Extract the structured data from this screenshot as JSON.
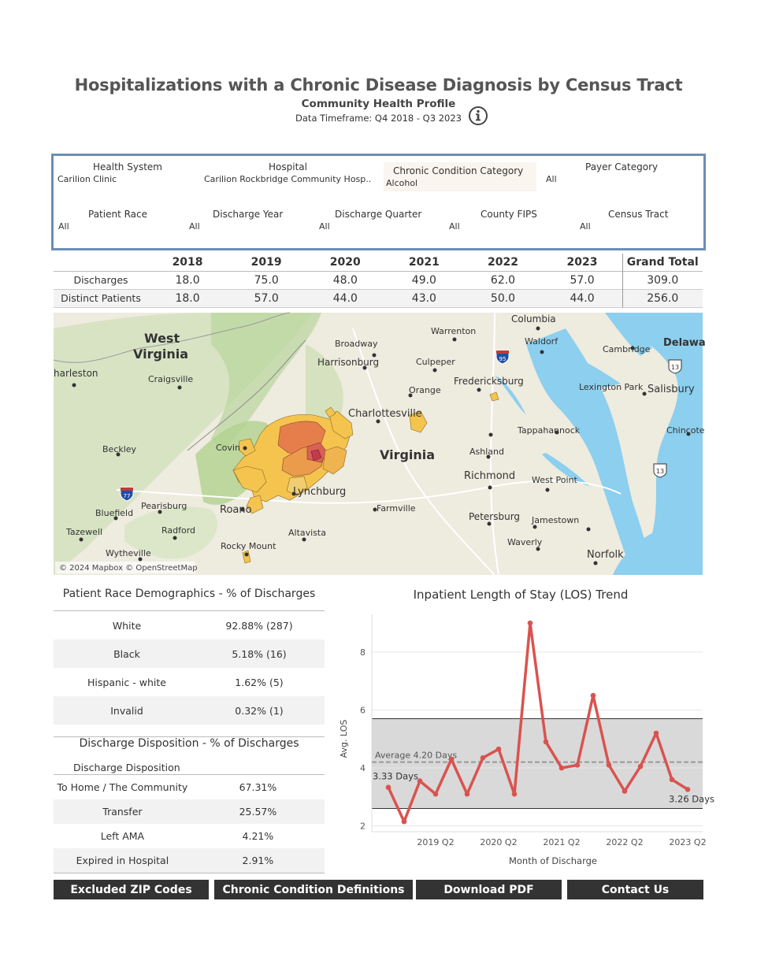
{
  "header": {
    "title": "Hospitalizations with a Chronic Disease Diagnosis by Census Tract",
    "subtitle": "Community Health Profile",
    "timeframe": "Data Timeframe: Q4 2018 - Q3 2023",
    "info_icon": "info-circle-icon"
  },
  "filters": {
    "health_system": {
      "label": "Health System",
      "value": "Carilion Clinic"
    },
    "hospital": {
      "label": "Hospital",
      "value": "Carilion Rockbridge Community Hosp.."
    },
    "chronic_condition": {
      "label": "Chronic Condition Category",
      "value": "Alcohol"
    },
    "payer_category": {
      "label": "Payer Category",
      "value": "All"
    },
    "patient_race": {
      "label": "Patient Race",
      "value": "All"
    },
    "discharge_year": {
      "label": "Discharge Year",
      "value": "All"
    },
    "discharge_quarter": {
      "label": "Discharge Quarter",
      "value": "All"
    },
    "county_fips": {
      "label": "County FIPS",
      "value": "All"
    },
    "census_tract": {
      "label": "Census Tract",
      "value": "All"
    }
  },
  "summary": {
    "columns": [
      "2018",
      "2019",
      "2020",
      "2021",
      "2022",
      "2023",
      "Grand Total"
    ],
    "rows": [
      {
        "label": "Discharges",
        "values": [
          "18.0",
          "75.0",
          "48.0",
          "49.0",
          "62.0",
          "57.0",
          "309.0"
        ]
      },
      {
        "label": "Distinct Patients",
        "values": [
          "18.0",
          "57.0",
          "44.0",
          "43.0",
          "50.0",
          "44.0",
          "256.0"
        ]
      }
    ]
  },
  "map": {
    "attribution": "© 2024 Mapbox © OpenStreetMap",
    "labels": {
      "west_virginia": "West Virginia",
      "west": "West",
      "virginia_wv": "Virginia",
      "charleston": "harleston",
      "craigsville": "Craigsville",
      "broadway": "Broadway",
      "harrisonburg": "Harrisonburg",
      "warrenton": "Warrenton",
      "columbia": "Columbia",
      "waldorf": "Waldorf",
      "cambridge": "Cambridge",
      "delaware": "Delawa",
      "culpeper": "Culpeper",
      "fredericksburg": "Fredericksburg",
      "lexington_park": "Lexington Park",
      "salisbury": "Salisbury",
      "orange": "Orange",
      "charlottesville": "Charlottesville",
      "tappahannock": "Tappahannock",
      "chincoteague": "Chincote",
      "beckley": "Beckley",
      "covington": "Covin",
      "virginia": "Virginia",
      "ashland": "Ashland",
      "richmond": "Richmond",
      "west_point": "West Point",
      "bluefield": "Bluefield",
      "pearisburg": "Pearisburg",
      "roanoke": "Roano",
      "lynchburg": "Lynchburg",
      "farmville": "Farmville",
      "petersburg": "Petersburg",
      "jamestown": "Jamestown",
      "tazewell": "Tazewell",
      "radford": "Radford",
      "altavista": "Altavista",
      "waverly": "Waverly",
      "wytheville": "Wytheville",
      "rocky_mount": "Rocky Mount",
      "norfolk": "Norfolk",
      "i95": "95",
      "i77": "77",
      "us13a": "13",
      "us13b": "13"
    }
  },
  "race": {
    "title": "Patient Race Demographics - % of Discharges",
    "rows": [
      {
        "label": "White",
        "value": "92.88% (287)"
      },
      {
        "label": "Black",
        "value": "5.18% (16)"
      },
      {
        "label": "Hispanic - white",
        "value": "1.62% (5)"
      },
      {
        "label": "Invalid",
        "value": "0.32% (1)"
      }
    ]
  },
  "disposition": {
    "title": "Discharge Disposition - % of Discharges",
    "column_header": "Discharge Disposition",
    "rows": [
      {
        "label": "To Home / The Community",
        "value": "67.31%"
      },
      {
        "label": "Transfer",
        "value": "25.57%"
      },
      {
        "label": "Left AMA",
        "value": "4.21%"
      },
      {
        "label": "Expired in Hospital",
        "value": "2.91%"
      }
    ]
  },
  "chart_data": {
    "type": "line",
    "title": "Inpatient Length of Stay (LOS) Trend",
    "xlabel": "Month of Discharge",
    "ylabel": "Avg. LOS",
    "ylim": [
      1.8,
      9.3
    ],
    "yticks": [
      2,
      4,
      6,
      8
    ],
    "xtick_labels": [
      {
        "label": "2019 Q2",
        "index": 2
      },
      {
        "label": "2020 Q2",
        "index": 6
      },
      {
        "label": "2021 Q2",
        "index": 10
      },
      {
        "label": "2022 Q2",
        "index": 14
      },
      {
        "label": "2023 Q2",
        "index": 18
      }
    ],
    "series": [
      {
        "values": [
          3.33,
          2.15,
          3.55,
          3.1,
          4.3,
          3.1,
          4.35,
          4.65,
          3.1,
          9.0,
          4.9,
          4.0,
          4.1,
          6.5,
          4.1,
          3.2,
          4.05,
          5.2,
          3.6,
          3.26
        ]
      }
    ],
    "reference_line": {
      "label": "Average 4.20 Days",
      "value": 4.2
    },
    "band": [
      2.6,
      5.7
    ],
    "start_label": "3.33 Days",
    "end_label": "3.26 Days",
    "line_color": "#d9534f",
    "grid": true
  },
  "buttons": {
    "excluded_zip": "Excluded ZIP Codes",
    "definitions": "Chronic Condition Definitions",
    "download_pdf": "Download PDF",
    "contact_us": "Contact Us"
  }
}
